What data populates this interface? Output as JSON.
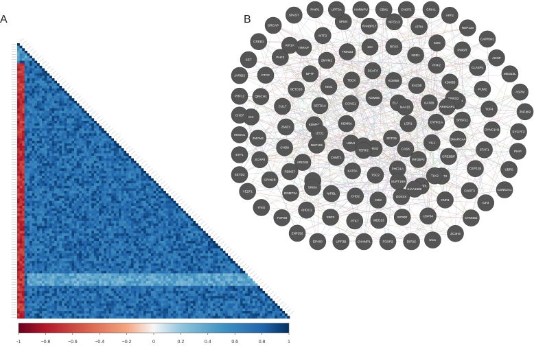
{
  "panels": {
    "left_label": "A",
    "right_label": "B"
  },
  "colorbar": {
    "ticks": [
      "-1",
      "−0.8",
      "−0.6",
      "−0.4",
      "−0.2",
      "0",
      "0.2",
      "0.4",
      "0.6",
      "0.8",
      "1"
    ],
    "colors": {
      "negative": "#b2182b",
      "neutral": "#f7f7f7",
      "positive": "#2166ac",
      "deep_positive": "#053061"
    }
  },
  "heatmap": {
    "description_values": {
      "negative_columns": 3,
      "matrix_size": 110
    }
  },
  "network": {
    "node_color": "#555555",
    "nodes": [
      "LGR1",
      "SETD5",
      "URN2",
      "UBN1",
      "KDM6A",
      "CCNG1",
      "KDM6B",
      "ELAVL3",
      "VIL1",
      "IRF2BP2",
      "PHF21A",
      "TSC2",
      "KAT6A",
      "CHMT1",
      "NUP155",
      "KDM5C",
      "SETD1A",
      "NINL",
      "TBCK",
      "SCAF4",
      "KDM5B",
      "EAZ2B",
      "KAT6B",
      "DYRK1A",
      "CNOT2",
      "IRF2BPL",
      "DDX3X",
      "CIB2",
      "CHD2",
      "NIPBL",
      "PDG2",
      "ARID1B",
      "CHD8",
      "ZMIZ1",
      "CUL7",
      "SETD1B",
      "BPTF",
      "ZMYM2",
      "TRIM33",
      "SKI",
      "RFX3",
      "NSD1",
      "PHF2",
      "KDM3B",
      "SMAD4",
      "SRSF11",
      "SMARCA4",
      "CREBBP",
      "USP34",
      "EP300",
      "MED13",
      "PTK7",
      "EBF3",
      "AHDC1",
      "DNMT3A",
      "GRIN2B",
      "SCAP8",
      "ZMYM4",
      "CIC",
      "QRICH1",
      "CTCF",
      "PHF3",
      "TRRAP",
      "MTF2",
      "SPEN",
      "RANBP17",
      "NFE2L3",
      "ATRX",
      "SON",
      "PNISR",
      "CLASP1",
      "PUM2",
      "TCF4",
      "DYNC1H1",
      "STAF1",
      "CEP135",
      "CNOT3",
      "CNR1",
      "FOXP2",
      "CHAMP1",
      "UPF3B",
      "EP400",
      "ZNF292",
      "TOP2B",
      "TRIO",
      "YEZF1",
      "SETD2",
      "ETF1",
      "HMGN1",
      "CHD7",
      "PHF12",
      "JARID2",
      "SET",
      "CREB1",
      "SRCAP",
      "SPAST",
      "PHIP1",
      "UPF3A",
      "HNRNPU",
      "CBX1",
      "CNOT1",
      "GRIA1",
      "AFF2",
      "NUP133",
      "CAPRIN1",
      "ADNP",
      "MED13L",
      "ASPM",
      "ZNF462",
      "SYGYF2",
      "PHIP",
      "UBR5",
      "CSNK2A1",
      "ILF3",
      "CTNNB1",
      "ZC3H4",
      "DCC",
      "DIP2C",
      "TLK2",
      "SIN3A",
      "PAK2",
      "SUPT16H",
      "NAA15",
      "TERF2",
      "CASK",
      "RBM27",
      "PRRX2",
      "LEO1",
      "ARHGAP1",
      "KIF1A",
      "KIAA1586"
    ]
  }
}
